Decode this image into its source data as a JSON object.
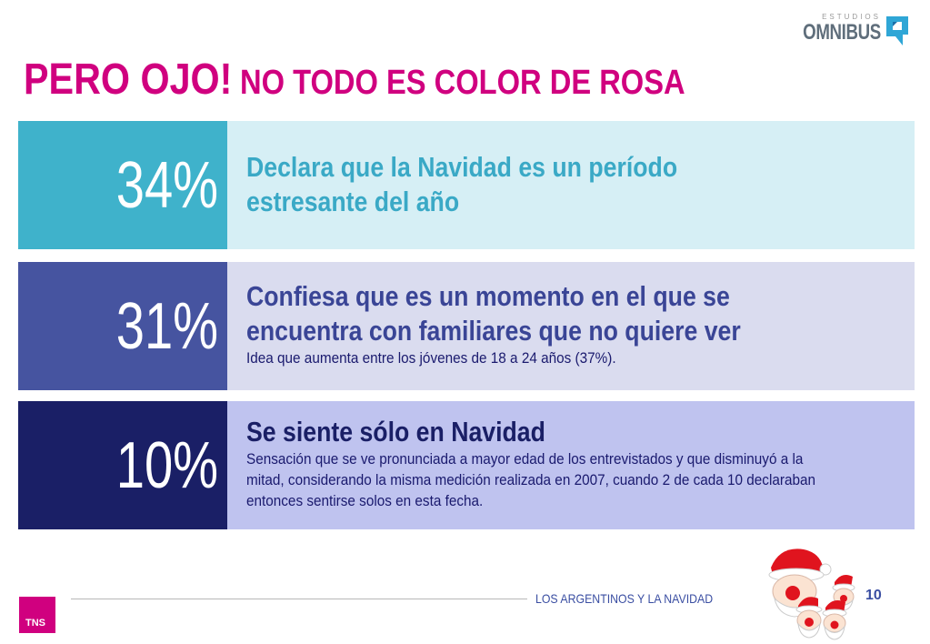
{
  "header": {
    "logo_small": "ESTUDIOS",
    "logo_main": "OMNIBUS",
    "title_big": "PERO OJO!",
    "title_small": "NO TODO ES COLOR DE ROSA"
  },
  "rows": [
    {
      "percent": "34%",
      "headline_lines": [
        "Declara que la Navidad es un período",
        "estresante del año"
      ],
      "color_left": "#3fb2cb",
      "color_right": "#d6eff5"
    },
    {
      "percent": "31%",
      "headline_lines": [
        "Confiesa que es un momento en el que se",
        "encuentra con familiares que no quiere ver"
      ],
      "note_lines": [
        "Idea que aumenta entre los jóvenes de 18 a 24 años (37%)."
      ],
      "color_left": "#4654a0",
      "color_right": "#dadcef"
    },
    {
      "percent": "10%",
      "headline_lines": [
        "Se siente sólo en Navidad"
      ],
      "note_lines": [
        "Sensación que se ve pronunciada a mayor edad de los entrevistados y que disminuyó a la",
        "mitad, considerando la misma medición realizada en 2007, cuando 2 de cada 10 declaraban",
        "entonces sentirse solos en esta fecha."
      ],
      "color_left": "#1a1f66",
      "color_right": "#bfc3ef"
    }
  ],
  "footer": {
    "text": "LOS ARGENTINOS Y LA NAVIDAD",
    "page_number": "10",
    "tns_logo": "TNS"
  },
  "colors": {
    "title": "#d0007f",
    "footer_text": "#3a4ea2"
  },
  "icons": [
    "omnibus-logo-mark-icon",
    "santa-faces-illustration"
  ]
}
